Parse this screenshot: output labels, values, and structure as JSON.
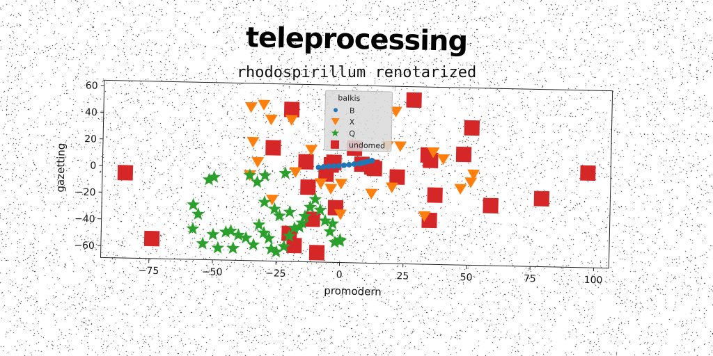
{
  "chart_data": {
    "type": "scatter",
    "title": "teleprocessing",
    "subtitle": "rhodospirillum renotarized",
    "xlabel": "promodern",
    "ylabel": "gazetting",
    "xlim": [
      -94,
      106
    ],
    "ylim": [
      -69,
      64
    ],
    "xticks": [
      -75,
      -50,
      -25,
      0,
      25,
      50,
      75,
      100
    ],
    "xtick_labels": [
      "−75",
      "−50",
      "−25",
      "0",
      "25",
      "50",
      "75",
      "100"
    ],
    "yticks": [
      -60,
      -40,
      -20,
      0,
      20,
      40,
      60
    ],
    "ytick_labels": [
      "−60",
      "−40",
      "−20",
      "0",
      "20",
      "40",
      "60"
    ],
    "grid": false,
    "legend": {
      "title": "balkis",
      "placement": "top-center"
    },
    "series": [
      {
        "name": "B",
        "marker": "circle",
        "color": "#1f77b4",
        "points": [
          [
            -9,
            2
          ],
          [
            -7,
            2.5
          ],
          [
            -5,
            3
          ],
          [
            -3,
            3.2
          ],
          [
            -1,
            3.5
          ],
          [
            1,
            4
          ],
          [
            3,
            4.5
          ],
          [
            5,
            5
          ],
          [
            7,
            5.5
          ],
          [
            8,
            6
          ],
          [
            9,
            6.5
          ],
          [
            10,
            7
          ],
          [
            11,
            7.5
          ],
          [
            12,
            8
          ]
        ]
      },
      {
        "name": "X",
        "marker": "triangle-down",
        "color": "#ff7f0e",
        "points": [
          [
            -36,
            46
          ],
          [
            -31,
            48
          ],
          [
            -28,
            37
          ],
          [
            -20,
            37
          ],
          [
            -35,
            20
          ],
          [
            -33,
            5
          ],
          [
            -36,
            -5
          ],
          [
            -27,
            -23
          ],
          [
            -12,
            15
          ],
          [
            -8,
            -10
          ],
          [
            -4,
            -14
          ],
          [
            0,
            -10
          ],
          [
            0,
            -33
          ],
          [
            12,
            -17
          ],
          [
            20,
            -12
          ],
          [
            18,
            19
          ],
          [
            23,
            19
          ],
          [
            21,
            45
          ],
          [
            33,
            -33
          ],
          [
            36,
            15
          ],
          [
            40,
            10
          ],
          [
            47,
            -12
          ],
          [
            51,
            -7
          ],
          [
            52,
            -1
          ],
          [
            -18,
            -2
          ]
        ]
      },
      {
        "name": "Q",
        "marker": "star",
        "color": "#2ca02c",
        "points": [
          [
            -58,
            -28
          ],
          [
            -56,
            -35
          ],
          [
            -58,
            -46
          ],
          [
            -54,
            -57
          ],
          [
            -50,
            -50
          ],
          [
            -48,
            -60
          ],
          [
            -45,
            -48
          ],
          [
            -43,
            -47
          ],
          [
            -40,
            -50
          ],
          [
            -42,
            -60
          ],
          [
            -37,
            -52
          ],
          [
            -34,
            -57
          ],
          [
            -32,
            -42
          ],
          [
            -30,
            -48
          ],
          [
            -28,
            -52
          ],
          [
            -27,
            -60
          ],
          [
            -25,
            -62
          ],
          [
            -22,
            -58
          ],
          [
            -20,
            -50
          ],
          [
            -18,
            -44
          ],
          [
            -15,
            -40
          ],
          [
            -14,
            -35
          ],
          [
            -12,
            -28
          ],
          [
            -10,
            -22
          ],
          [
            -8,
            -30
          ],
          [
            -6,
            -38
          ],
          [
            -4,
            -46
          ],
          [
            -2,
            -54
          ],
          [
            0,
            -52
          ],
          [
            -30,
            -25
          ],
          [
            -26,
            -30
          ],
          [
            -24,
            -35
          ],
          [
            -20,
            -32
          ],
          [
            -33,
            -10
          ],
          [
            -36,
            -5
          ],
          [
            -30,
            -5
          ],
          [
            -22,
            -3
          ],
          [
            -50,
            -7
          ],
          [
            -52,
            -9
          ],
          [
            -16,
            -43
          ],
          [
            -3,
            -40
          ],
          [
            0,
            -53
          ]
        ]
      },
      {
        "name": "undomed",
        "marker": "square",
        "color": "#d62728",
        "points": [
          [
            -85,
            -5
          ],
          [
            -74,
            -54
          ],
          [
            -20,
            45
          ],
          [
            -27,
            16
          ],
          [
            -14,
            6
          ],
          [
            -13,
            -13
          ],
          [
            -11,
            -37
          ],
          [
            -20,
            -48
          ],
          [
            -18,
            -57
          ],
          [
            -9,
            -62
          ],
          [
            -6,
            -3
          ],
          [
            -4,
            4
          ],
          [
            -3,
            6
          ],
          [
            -2,
            -28
          ],
          [
            5,
            17
          ],
          [
            8,
            5
          ],
          [
            12,
            3
          ],
          [
            13,
            2
          ],
          [
            22,
            -4
          ],
          [
            28,
            54
          ],
          [
            34,
            13
          ],
          [
            35,
            9
          ],
          [
            35,
            -36
          ],
          [
            37,
            -17
          ],
          [
            48,
            14
          ],
          [
            51,
            34
          ],
          [
            59,
            -24
          ],
          [
            79,
            -18
          ],
          [
            97,
            2
          ]
        ]
      }
    ]
  }
}
